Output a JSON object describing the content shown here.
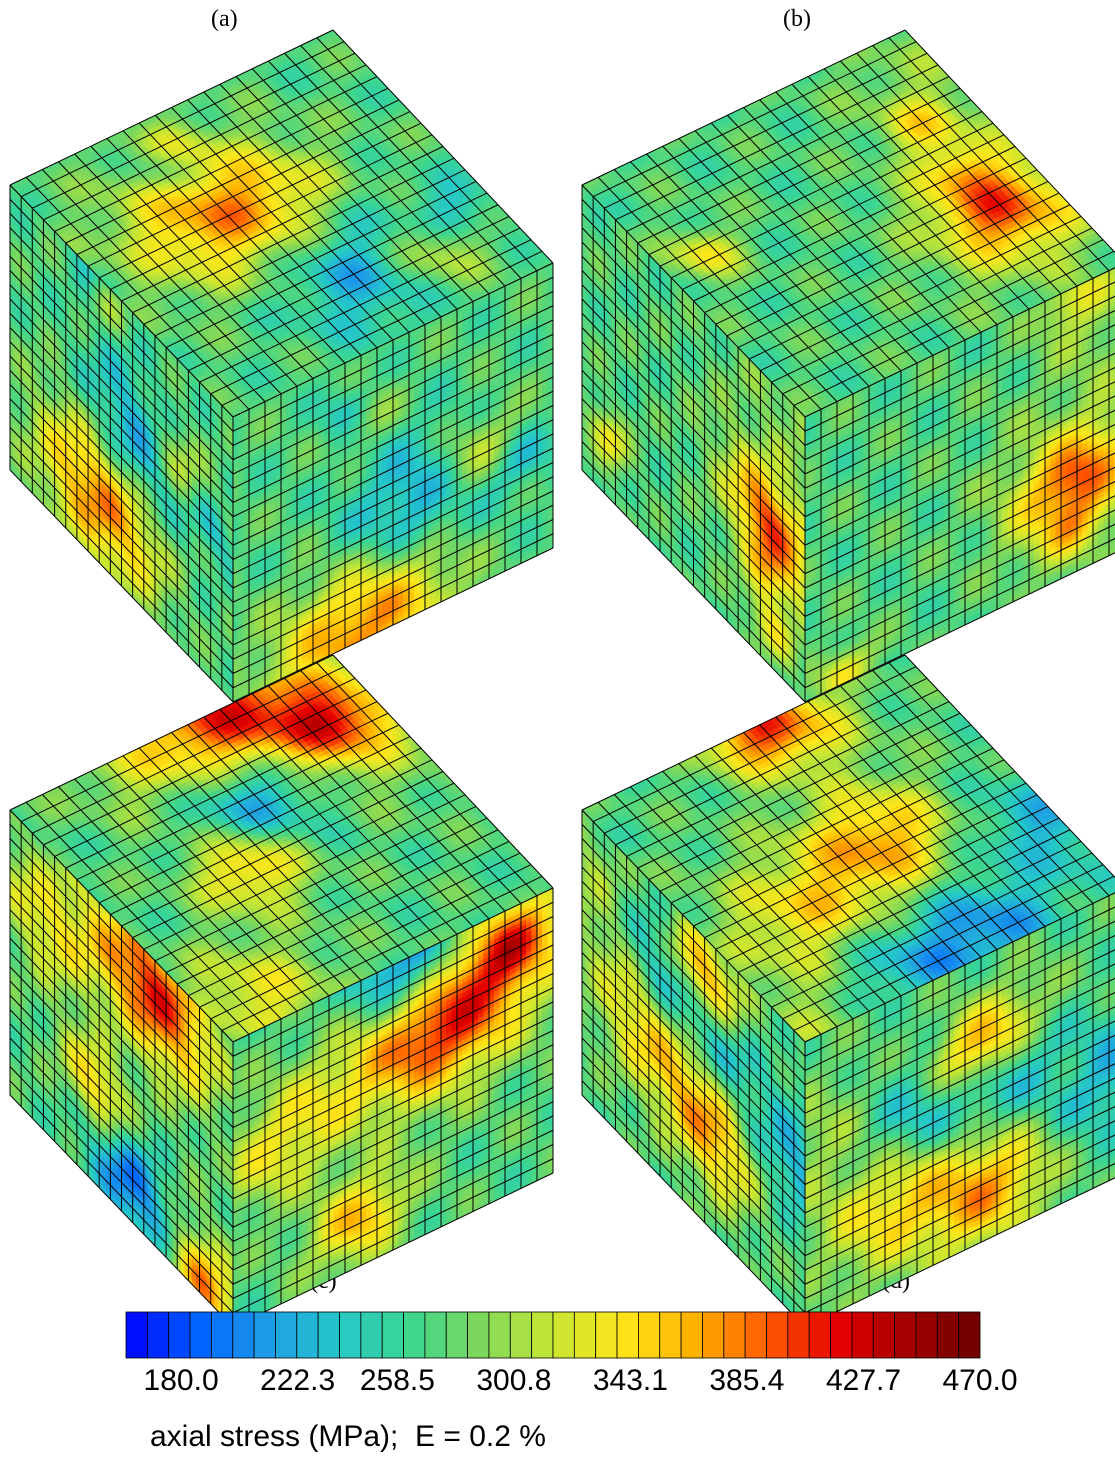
{
  "panels": [
    {
      "id": "a",
      "label": "(a)",
      "seed": 11
    },
    {
      "id": "b",
      "label": "(b)",
      "seed": 23
    },
    {
      "id": "c",
      "label": "(c)",
      "seed": 37
    },
    {
      "id": "d",
      "label": "(d)",
      "seed": 51
    }
  ],
  "colorbar": {
    "min": 160,
    "max": 470,
    "n_bins": 40,
    "ticks": [
      "180.0",
      "222.3",
      "258.5",
      "300.8",
      "343.1",
      "385.4",
      "427.7",
      "470.0"
    ],
    "title": "axial stress (MPa);  E = 0.2 %"
  },
  "colormap": [
    "#0000ff",
    "#0060ff",
    "#1e9ee6",
    "#25c8c8",
    "#3dd68f",
    "#7fd85a",
    "#c8e632",
    "#ffe619",
    "#ffb000",
    "#ff5a00",
    "#e60000",
    "#a00000",
    "#6e0000"
  ],
  "mesh": {
    "grid_divisions": 20,
    "line_color": "#000000"
  }
}
